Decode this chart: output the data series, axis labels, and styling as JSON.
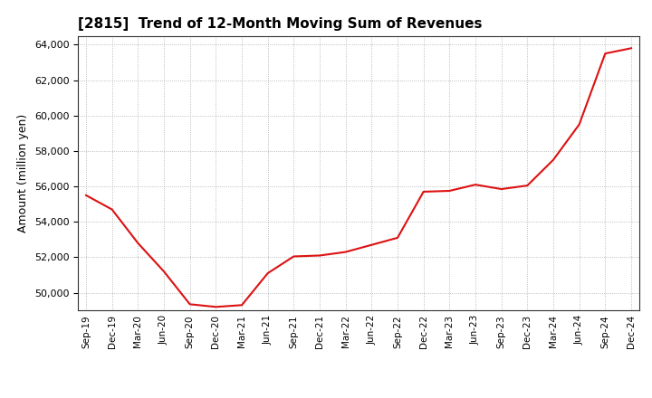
{
  "title": "[2815]  Trend of 12-Month Moving Sum of Revenues",
  "ylabel": "Amount (million yen)",
  "line_color": "#dd1111",
  "line_width": 1.5,
  "background_color": "#ffffff",
  "grid_color": "#aaaaaa",
  "ylim": [
    49000,
    64500
  ],
  "yticks": [
    50000,
    52000,
    54000,
    56000,
    58000,
    60000,
    62000,
    64000
  ],
  "x_labels": [
    "Sep-19",
    "Dec-19",
    "Mar-20",
    "Jun-20",
    "Sep-20",
    "Dec-20",
    "Mar-21",
    "Jun-21",
    "Sep-21",
    "Dec-21",
    "Mar-22",
    "Jun-22",
    "Sep-22",
    "Dec-22",
    "Mar-23",
    "Jun-23",
    "Sep-23",
    "Dec-23",
    "Mar-24",
    "Jun-24",
    "Sep-24",
    "Dec-24"
  ],
  "values": [
    55500,
    54700,
    52800,
    51200,
    49350,
    49200,
    49300,
    51100,
    52050,
    52100,
    52300,
    52700,
    53100,
    55700,
    55750,
    56100,
    55850,
    56050,
    57500,
    59500,
    63500,
    63800
  ],
  "title_fontsize": 11,
  "ylabel_fontsize": 9,
  "tick_fontsize": 8,
  "xtick_fontsize": 7.5
}
